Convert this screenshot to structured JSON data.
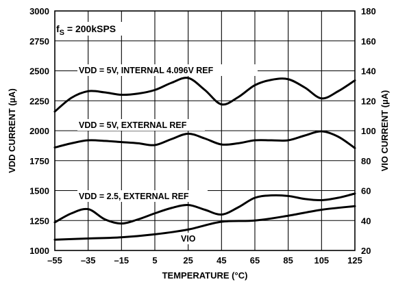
{
  "chart_data": {
    "type": "line",
    "xlabel": "TEMPERATURE (°C)",
    "ylabel_left": "VDD CURRENT (µA)",
    "ylabel_right": "VIO CURRENT (µA)",
    "xlim": [
      -55,
      125
    ],
    "ylim_left": [
      1000,
      3000
    ],
    "ylim_right": [
      20,
      180
    ],
    "x_ticks": [
      "–55",
      "–35",
      "–15",
      "5",
      "25",
      "45",
      "65",
      "85",
      "105",
      "125"
    ],
    "y_left_ticks": [
      "1000",
      "1250",
      "1500",
      "1750",
      "2000",
      "2250",
      "2500",
      "2750",
      "3000"
    ],
    "y_right_ticks": [
      "20",
      "40",
      "60",
      "80",
      "100",
      "120",
      "140",
      "160",
      "180"
    ],
    "grid": true,
    "annotations": {
      "fs": "f",
      "fs_sub": "S",
      "fs_rest": " = 200kSPS",
      "internal": "VDD = 5V, INTERNAL 4.096V REF",
      "external5": "VDD = 5V, EXTERNAL REF",
      "external25": "VDD = 2.5, EXTERNAL REF",
      "vio": "VIO"
    },
    "series": [
      {
        "axis": "left",
        "x": [
          -55,
          -45,
          -35,
          -25,
          -15,
          -5,
          5,
          15,
          25,
          35,
          45,
          55,
          65,
          75,
          85,
          95,
          105,
          115,
          125
        ],
        "y": [
          2160,
          2275,
          2330,
          2320,
          2300,
          2310,
          2340,
          2400,
          2440,
          2340,
          2220,
          2280,
          2380,
          2425,
          2430,
          2360,
          2270,
          2330,
          2420
        ]
      },
      {
        "axis": "left",
        "x": [
          -55,
          -45,
          -35,
          -25,
          -15,
          -5,
          5,
          15,
          25,
          35,
          45,
          55,
          65,
          75,
          85,
          95,
          105,
          115,
          125
        ],
        "y": [
          1860,
          1895,
          1920,
          1915,
          1905,
          1895,
          1880,
          1930,
          1975,
          1935,
          1885,
          1895,
          1920,
          1920,
          1920,
          1960,
          1995,
          1950,
          1855
        ]
      },
      {
        "axis": "left",
        "x": [
          -55,
          -45,
          -35,
          -25,
          -15,
          -5,
          5,
          15,
          25,
          35,
          45,
          55,
          65,
          75,
          85,
          95,
          105,
          115,
          125
        ],
        "y": [
          1235,
          1310,
          1345,
          1260,
          1225,
          1260,
          1310,
          1355,
          1380,
          1340,
          1300,
          1360,
          1440,
          1460,
          1455,
          1430,
          1420,
          1440,
          1475
        ]
      },
      {
        "axis": "left",
        "x": [
          -55,
          -35,
          -15,
          5,
          25,
          45,
          65,
          85,
          105,
          125
        ],
        "y": [
          1090,
          1100,
          1110,
          1135,
          1175,
          1240,
          1250,
          1290,
          1340,
          1370
        ]
      }
    ]
  }
}
